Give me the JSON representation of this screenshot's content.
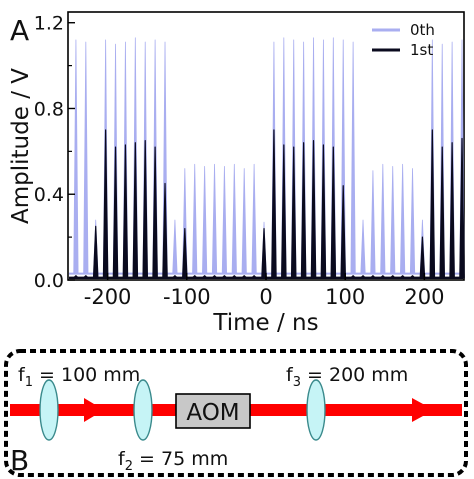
{
  "chart_data": {
    "type": "line",
    "panel_label": "A",
    "xlabel": "Time / ns",
    "ylabel": "Amplitude / V",
    "xlim": [
      -250,
      250
    ],
    "ylim": [
      0,
      1.25
    ],
    "xticks": [
      -200,
      -100,
      0,
      100,
      200
    ],
    "yticks": [
      0.0,
      0.4,
      0.8,
      1.2
    ],
    "xtick_labels": [
      "-200",
      "-100",
      "0",
      "100",
      "200"
    ],
    "ytick_labels": [
      "0.0",
      "0.4",
      "0.8",
      "1.2"
    ],
    "grid": false,
    "legend_position": "top-right",
    "pulse_period_ns": 12.5,
    "series": [
      {
        "name": "0th",
        "color": "#a9aef0",
        "pulse_times": [
          -240,
          -227.5,
          -215,
          -202.5,
          -190,
          -177.5,
          -165,
          -152.5,
          -140,
          -127.5,
          -115,
          -102.5,
          -90,
          -77.5,
          -65,
          -52.5,
          -40,
          -27.5,
          -15,
          -2.5,
          10,
          22.5,
          35,
          47.5,
          60,
          72.5,
          85,
          97.5,
          110,
          122.5,
          135,
          147.5,
          160,
          172.5,
          185,
          197.5,
          210,
          222.5,
          235,
          247.5
        ],
        "pulse_heights": [
          1.12,
          1.11,
          0.28,
          1.12,
          1.1,
          1.11,
          1.13,
          1.11,
          1.12,
          1.11,
          0.28,
          0.52,
          0.54,
          0.53,
          0.54,
          0.53,
          0.54,
          0.52,
          0.54,
          0.27,
          1.11,
          1.13,
          1.12,
          1.11,
          1.13,
          1.12,
          1.13,
          1.12,
          1.11,
          0.28,
          0.51,
          0.54,
          0.53,
          0.54,
          0.52,
          0.28,
          1.12,
          1.1,
          1.11,
          1.12
        ],
        "baseline": 0.03
      },
      {
        "name": "1st",
        "color": "#0a0a1e",
        "pulse_times": [
          -240,
          -227.5,
          -215,
          -202.5,
          -190,
          -177.5,
          -165,
          -152.5,
          -140,
          -127.5,
          -115,
          -102.5,
          -90,
          -77.5,
          -65,
          -52.5,
          -40,
          -27.5,
          -15,
          -2.5,
          10,
          22.5,
          35,
          47.5,
          60,
          72.5,
          85,
          97.5,
          110,
          122.5,
          135,
          147.5,
          160,
          172.5,
          185,
          197.5,
          210,
          222.5,
          235,
          247.5
        ],
        "pulse_heights": [
          0.02,
          0.02,
          0.25,
          0.7,
          0.62,
          0.63,
          0.64,
          0.65,
          0.62,
          0.45,
          0.02,
          0.24,
          0.02,
          0.02,
          0.02,
          0.02,
          0.02,
          0.02,
          0.02,
          0.24,
          0.7,
          0.63,
          0.62,
          0.64,
          0.65,
          0.63,
          0.62,
          0.44,
          0.02,
          0.02,
          0.02,
          0.02,
          0.02,
          0.02,
          0.02,
          0.2,
          0.7,
          0.62,
          0.64,
          0.66
        ],
        "baseline": 0.01
      }
    ]
  },
  "diagram": {
    "panel_label": "B",
    "f1_label": "f",
    "f1_sub": "1",
    "f1_value": " = 100 mm",
    "f2_label": "f",
    "f2_sub": "2",
    "f2_value": " = 75 mm",
    "f3_label": "f",
    "f3_sub": "3",
    "f3_value": " = 200 mm",
    "aom_label": "AOM",
    "beam_color": "#ff0000",
    "lens_color": "#c6f4f6",
    "aom_color": "#c8c8c8"
  }
}
